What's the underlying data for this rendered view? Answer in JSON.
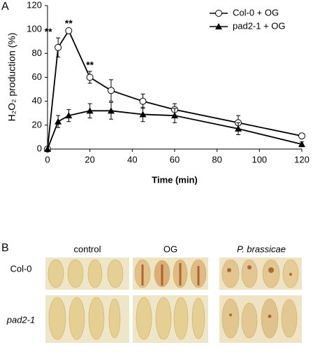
{
  "chart_data": {
    "type": "line",
    "panel_label": "A",
    "x_label": "Time (min)",
    "y_label": "H₂O₂ production (%)",
    "x": [
      0,
      5,
      10,
      20,
      30,
      45,
      60,
      90,
      120
    ],
    "series": [
      {
        "name": "Col-0 + OG",
        "color": "#000000",
        "marker": "circle",
        "values": [
          0,
          85,
          99,
          60,
          49,
          40,
          33,
          22,
          11
        ],
        "errors": [
          0,
          8,
          1,
          5,
          9,
          6,
          5,
          6,
          2
        ],
        "value_labels": [
          null,
          "**",
          "**",
          "**",
          null,
          null,
          null,
          null,
          null
        ]
      },
      {
        "name": "pad2-1 + OG",
        "color": "#000000",
        "marker": "triangle",
        "values": [
          0,
          23,
          28,
          32,
          32,
          29,
          28,
          17,
          4
        ],
        "errors": [
          0,
          5,
          5,
          6,
          7,
          6,
          6,
          5,
          2
        ]
      }
    ],
    "xlim": [
      0,
      120
    ],
    "xticks": [
      0,
      20,
      40,
      60,
      80,
      100,
      120
    ],
    "ylim": [
      0,
      120
    ],
    "yticks": [
      0,
      20,
      40,
      60,
      80,
      100,
      120
    ],
    "grid": false,
    "legend": "upper right"
  },
  "panel_b": {
    "label": "B",
    "columns": [
      "control",
      "OG",
      "P. brassicae"
    ],
    "rows": [
      "Col-0",
      "pad2-1"
    ]
  }
}
